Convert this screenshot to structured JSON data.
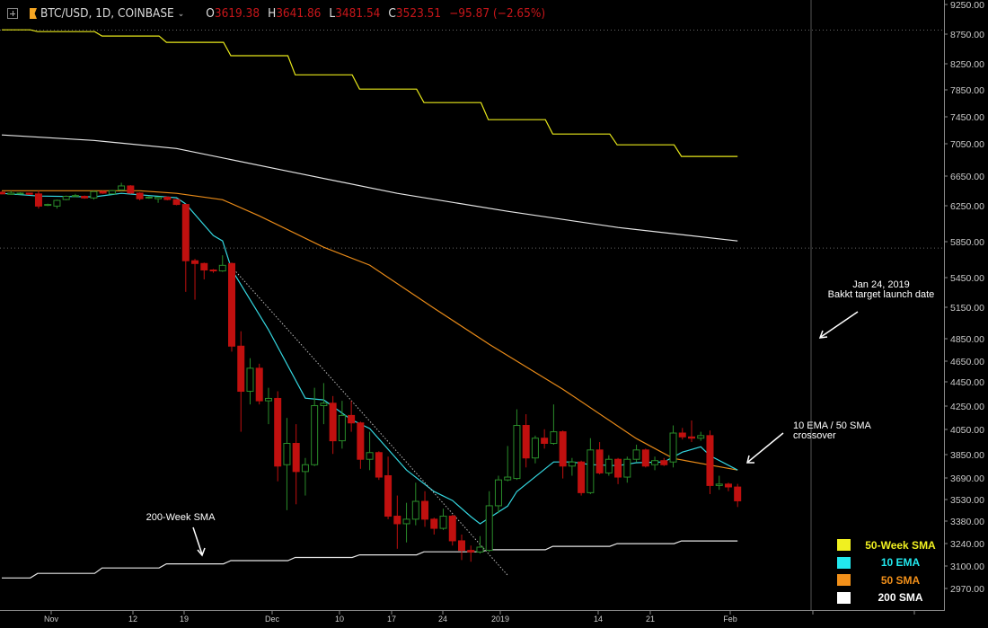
{
  "header": {
    "symbol": "BTC/USD, 1D, COINBASE",
    "open_label": "O",
    "open": "3619.38",
    "high_label": "H",
    "high": "3641.86",
    "low_label": "L",
    "low": "3481.54",
    "close_label": "C",
    "close": "3523.51",
    "change": "−95.87 (−2.65%)"
  },
  "colors": {
    "background": "#000000",
    "up": "#2a8c2a",
    "down": "#c0100f",
    "sma50week": "#e8e81a",
    "ema10": "#34d6df",
    "sma50": "#e88a18",
    "sma200": "#e6e6e6",
    "sma200week": "#e6e6e6",
    "annotation": "#ffffff"
  },
  "chart_data": {
    "type": "candlestick",
    "title": "",
    "y_scale": "log",
    "ylim": [
      2900,
      9300
    ],
    "y_ticks": [
      "9250.00",
      "8750.00",
      "8250.00",
      "7850.00",
      "7450.00",
      "7050.00",
      "6650.00",
      "6250.00",
      "5850.00",
      "5450.00",
      "5150.00",
      "4850.00",
      "4650.00",
      "4450.00",
      "4250.00",
      "4050.00",
      "3850.00",
      "3690.00",
      "3530.00",
      "3380.00",
      "3240.00",
      "3100.00",
      "2970.00"
    ],
    "x_ticks": [
      "Nov",
      "12",
      "19",
      "Dec",
      "10",
      "17",
      "24",
      "2019",
      "14",
      "21",
      "Feb"
    ],
    "candles_ohlc": [
      [
        6420,
        6430,
        6395,
        6400
      ],
      [
        6395,
        6440,
        6390,
        6410
      ],
      [
        6400,
        6420,
        6395,
        6410
      ],
      [
        6410,
        6415,
        6390,
        6395
      ],
      [
        6400,
        6440,
        6220,
        6250
      ],
      [
        6260,
        6280,
        6250,
        6270
      ],
      [
        6250,
        6330,
        6220,
        6320
      ],
      [
        6330,
        6380,
        6320,
        6370
      ],
      [
        6370,
        6400,
        6360,
        6380
      ],
      [
        6370,
        6380,
        6340,
        6350
      ],
      [
        6350,
        6440,
        6330,
        6430
      ],
      [
        6430,
        6440,
        6400,
        6410
      ],
      [
        6400,
        6450,
        6395,
        6440
      ],
      [
        6450,
        6540,
        6440,
        6500
      ],
      [
        6500,
        6510,
        6400,
        6410
      ],
      [
        6410,
        6420,
        6320,
        6340
      ],
      [
        6350,
        6370,
        6340,
        6360
      ],
      [
        6340,
        6365,
        6290,
        6360
      ],
      [
        6360,
        6370,
        6320,
        6330
      ],
      [
        6330,
        6340,
        6260,
        6270
      ],
      [
        6270,
        6280,
        5290,
        5620
      ],
      [
        5620,
        5640,
        5210,
        5590
      ],
      [
        5590,
        5600,
        5420,
        5520
      ],
      [
        5520,
        5530,
        5490,
        5510
      ],
      [
        5510,
        5680,
        5500,
        5570
      ],
      [
        5590,
        5600,
        4710,
        4760
      ],
      [
        4760,
        4900,
        4030,
        4360
      ],
      [
        4360,
        4650,
        4250,
        4560
      ],
      [
        4560,
        4600,
        4250,
        4280
      ],
      [
        4280,
        4390,
        4090,
        4300
      ],
      [
        4300,
        4360,
        3660,
        3770
      ],
      [
        3780,
        4140,
        3460,
        3940
      ],
      [
        3940,
        4090,
        3500,
        3730
      ],
      [
        3730,
        3830,
        3560,
        3780
      ],
      [
        3780,
        4390,
        3770,
        4240
      ],
      [
        4240,
        4430,
        4090,
        4260
      ],
      [
        4260,
        4320,
        3860,
        3960
      ],
      [
        3960,
        4280,
        3900,
        4160
      ],
      [
        4160,
        4280,
        4030,
        4100
      ],
      [
        4100,
        4110,
        3750,
        3820
      ],
      [
        3820,
        4030,
        3740,
        3870
      ],
      [
        3870,
        3880,
        3670,
        3690
      ],
      [
        3700,
        3840,
        3400,
        3420
      ],
      [
        3420,
        3560,
        3210,
        3370
      ],
      [
        3370,
        3510,
        3250,
        3400
      ],
      [
        3400,
        3650,
        3360,
        3520
      ],
      [
        3520,
        3590,
        3350,
        3400
      ],
      [
        3400,
        3410,
        3300,
        3340
      ],
      [
        3340,
        3470,
        3330,
        3420
      ],
      [
        3420,
        3430,
        3230,
        3260
      ],
      [
        3260,
        3300,
        3140,
        3200
      ],
      [
        3200,
        3230,
        3130,
        3190
      ],
      [
        3190,
        3290,
        3180,
        3220
      ],
      [
        3200,
        3590,
        3190,
        3490
      ],
      [
        3490,
        3700,
        3440,
        3670
      ],
      [
        3670,
        3920,
        3660,
        3690
      ],
      [
        3680,
        4210,
        3670,
        4080
      ],
      [
        4080,
        4170,
        3760,
        3830
      ],
      [
        3830,
        4000,
        3790,
        3980
      ],
      [
        3980,
        4050,
        3900,
        3940
      ],
      [
        3940,
        4250,
        3930,
        4030
      ],
      [
        4030,
        4040,
        3680,
        3770
      ],
      [
        3770,
        3830,
        3700,
        3800
      ],
      [
        3800,
        3810,
        3560,
        3580
      ],
      [
        3580,
        3980,
        3570,
        3890
      ],
      [
        3890,
        3950,
        3710,
        3720
      ],
      [
        3720,
        3850,
        3700,
        3820
      ],
      [
        3820,
        3830,
        3640,
        3690
      ],
      [
        3690,
        3840,
        3650,
        3820
      ],
      [
        3820,
        3930,
        3800,
        3890
      ],
      [
        3890,
        3900,
        3760,
        3770
      ],
      [
        3780,
        3840,
        3740,
        3810
      ],
      [
        3810,
        3830,
        3770,
        3780
      ],
      [
        3800,
        4080,
        3760,
        4020
      ],
      [
        4020,
        4060,
        3970,
        3990
      ],
      [
        3990,
        4120,
        3950,
        3980
      ],
      [
        3980,
        4030,
        3960,
        4000
      ],
      [
        4000,
        4040,
        3570,
        3630
      ],
      [
        3630,
        3700,
        3600,
        3640
      ],
      [
        3640,
        3650,
        3590,
        3620
      ],
      [
        3619.38,
        3641.86,
        3481.54,
        3523.51
      ]
    ],
    "series": [
      {
        "name": "50-Week SMA",
        "kind": "weekly-step",
        "values": [
          8806,
          8774,
          8700,
          8594,
          8373,
          8068,
          7847,
          7643,
          7394,
          7190,
          7041,
          6884
        ]
      },
      {
        "name": "200-Week SMA",
        "kind": "weekly-step",
        "values": [
          3033,
          3060,
          3092,
          3117,
          3137,
          3156,
          3172,
          3191,
          3204,
          3225,
          3242,
          3259
        ]
      },
      {
        "name": "200 SMA",
        "kind": "line",
        "points": [
          [
            0,
            7178
          ],
          [
            10,
            7101
          ],
          [
            19,
            6991
          ],
          [
            31,
            6692
          ],
          [
            43,
            6407
          ],
          [
            55,
            6187
          ],
          [
            67,
            5995
          ],
          [
            80,
            5840
          ]
        ]
      },
      {
        "name": "50 SMA",
        "kind": "line",
        "points": [
          [
            0,
            6440
          ],
          [
            15,
            6440
          ],
          [
            19,
            6407
          ],
          [
            24,
            6328
          ],
          [
            28,
            6132
          ],
          [
            35,
            5769
          ],
          [
            40,
            5572
          ],
          [
            47,
            5124
          ],
          [
            53,
            4777
          ],
          [
            61,
            4378
          ],
          [
            69,
            3977
          ],
          [
            73,
            3827
          ],
          [
            80,
            3741
          ]
        ]
      },
      {
        "name": "10 EMA",
        "kind": "line",
        "points": [
          [
            0,
            6407
          ],
          [
            4,
            6374
          ],
          [
            10,
            6363
          ],
          [
            13,
            6407
          ],
          [
            19,
            6352
          ],
          [
            20,
            6276
          ],
          [
            23,
            5902
          ],
          [
            24,
            5840
          ],
          [
            25,
            5524
          ],
          [
            29,
            4913
          ],
          [
            33,
            4302
          ],
          [
            35,
            4288
          ],
          [
            38,
            4126
          ],
          [
            40,
            4055
          ],
          [
            44,
            3741
          ],
          [
            47,
            3588
          ],
          [
            49,
            3526
          ],
          [
            51,
            3417
          ],
          [
            52,
            3370
          ],
          [
            55,
            3488
          ],
          [
            56,
            3588
          ],
          [
            60,
            3800
          ],
          [
            62,
            3800
          ],
          [
            64,
            3780
          ],
          [
            67,
            3773
          ],
          [
            69,
            3795
          ],
          [
            72,
            3800
          ],
          [
            74,
            3874
          ],
          [
            76,
            3914
          ],
          [
            77,
            3847
          ],
          [
            80,
            3741
          ]
        ]
      }
    ],
    "trendline": [
      [
        25,
        5552
      ],
      [
        55,
        3049
      ]
    ],
    "horizontal_lines": [
      8800,
      5760
    ],
    "legend_position": "bottom-right",
    "annotations": {
      "bakkt_date": "Jan 24, 2019",
      "bakkt_text": "Bakkt target launch date",
      "crossover_line1": "10 EMA / 50 SMA",
      "crossover_line2": "crossover",
      "sma200week": "200-Week SMA"
    }
  },
  "legend": [
    {
      "label": "50-Week SMA",
      "color": "#f0f020"
    },
    {
      "label": "10 EMA",
      "color": "#22e8ee"
    },
    {
      "label": "50 SMA",
      "color": "#f2901a"
    },
    {
      "label": "200 SMA",
      "color": "#ffffff"
    }
  ]
}
